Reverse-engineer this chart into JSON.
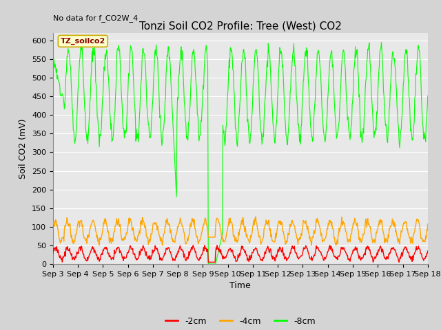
{
  "title": "Tonzi Soil CO2 Profile: Tree (West) CO2",
  "top_left_text": "No data for f_CO2W_4",
  "ylabel": "Soil CO2 (mV)",
  "xlabel": "Time",
  "legend_label": "TZ_soilco2",
  "ylim": [
    0,
    620
  ],
  "yticks": [
    0,
    50,
    100,
    150,
    200,
    250,
    300,
    350,
    400,
    450,
    500,
    550,
    600
  ],
  "xtick_labels": [
    "Sep 3",
    "Sep 4",
    "Sep 5",
    "Sep 6",
    "Sep 7",
    "Sep 8",
    "Sep 9",
    "Sep 10",
    "Sep 11",
    "Sep 12",
    "Sep 13",
    "Sep 14",
    "Sep 15",
    "Sep 16",
    "Sep 17",
    "Sep 18"
  ],
  "line_colors": {
    "2cm": "#ff0000",
    "4cm": "#ffa500",
    "8cm": "#00ff00"
  },
  "legend_entries": [
    "-2cm",
    "-4cm",
    "-8cm"
  ],
  "fig_facecolor": "#d4d4d4",
  "plot_facecolor": "#e8e8e8",
  "title_fontsize": 11,
  "axis_fontsize": 9,
  "tick_fontsize": 8
}
